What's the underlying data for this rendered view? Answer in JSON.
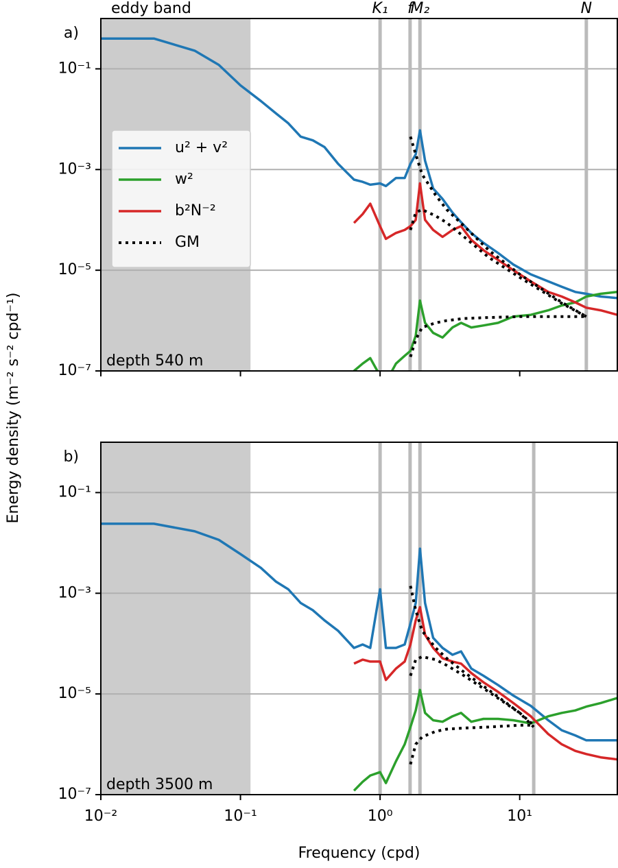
{
  "chart_data": [
    {
      "type": "line",
      "panel_label": "a)",
      "annotation": "depth 540 m",
      "ylabel": "Energy density (m⁻² s⁻² cpd⁻¹)",
      "xscale": "log",
      "yscale": "log",
      "xlim": [
        0.01,
        50
      ],
      "ylim": [
        1e-07,
        1
      ],
      "yticks": [
        {
          "value": 1e-07,
          "label": "10⁻⁷"
        },
        {
          "value": 1e-05,
          "label": "10⁻⁵"
        },
        {
          "value": 0.001,
          "label": "10⁻³"
        },
        {
          "value": 0.1,
          "label": "10⁻¹"
        }
      ],
      "grid": true,
      "legend": "upper left",
      "shade": {
        "xlim": [
          0.01,
          0.118
        ],
        "label": "eddy band",
        "color": "#cccccc"
      },
      "vlines": [
        {
          "value": 1.0,
          "label": "K₁"
        },
        {
          "value": 1.64,
          "label": "f"
        },
        {
          "value": 1.93,
          "label": "M₂"
        },
        {
          "value": 30,
          "label": "N"
        }
      ],
      "x": [
        0.01,
        0.024,
        0.047,
        0.07,
        0.1,
        0.14,
        0.18,
        0.22,
        0.27,
        0.33,
        0.4,
        0.5,
        0.65,
        0.75,
        0.85,
        1.0,
        1.1,
        1.3,
        1.5,
        1.65,
        1.8,
        1.93,
        2.1,
        2.4,
        2.8,
        3.3,
        3.8,
        4.5,
        5.5,
        7,
        9,
        12,
        16,
        20,
        25,
        30,
        38,
        50
      ],
      "series": [
        {
          "name": "u² + v²",
          "color": "#1f77b4",
          "style": "solid",
          "values": [
            0.4,
            0.4,
            0.23,
            0.12,
            0.047,
            0.023,
            0.013,
            0.0083,
            0.0045,
            0.0038,
            0.0028,
            0.0013,
            0.00063,
            0.00057,
            0.0005,
            0.00053,
            0.00047,
            0.00068,
            0.00068,
            0.0013,
            0.002,
            0.006,
            0.0015,
            0.00042,
            0.00026,
            0.00014,
            9e-05,
            5.5e-05,
            3.5e-05,
            2.2e-05,
            1.3e-05,
            8.3e-06,
            6e-06,
            4.7e-06,
            3.7e-06,
            3.4e-06,
            3e-06,
            2.8e-06
          ]
        },
        {
          "name": "w²",
          "color": "#2ca02c",
          "style": "solid",
          "values": [
            null,
            null,
            null,
            null,
            null,
            null,
            null,
            null,
            null,
            null,
            null,
            null,
            1e-07,
            1.4e-07,
            1.8e-07,
            8e-08,
            6e-08,
            1.4e-07,
            2e-07,
            2.5e-07,
            5e-07,
            2.5e-06,
            9e-07,
            5.7e-07,
            4.6e-07,
            7.3e-07,
            9e-07,
            7.3e-07,
            8e-07,
            9e-07,
            1.2e-06,
            1.3e-06,
            1.6e-06,
            2e-06,
            2.3e-06,
            3e-06,
            3.4e-06,
            3.7e-06
          ]
        },
        {
          "name": "b²N⁻²",
          "color": "#d62728",
          "style": "solid",
          "values": [
            null,
            null,
            null,
            null,
            null,
            null,
            null,
            null,
            null,
            null,
            null,
            null,
            8.7e-05,
            0.00013,
            0.00021,
            7.5e-05,
            4.2e-05,
            5.5e-05,
            6.3e-05,
            7.5e-05,
            0.0001,
            0.00053,
            0.0001,
            6.3e-05,
            4.6e-05,
            6.3e-05,
            7.5e-05,
            4e-05,
            2.5e-05,
            1.6e-05,
            1e-05,
            6e-06,
            3.7e-06,
            3e-06,
            2.3e-06,
            1.8e-06,
            1.6e-06,
            1.3e-06
          ]
        },
        {
          "name": "GM",
          "color": "#000000",
          "style": "dotted",
          "x": [
            1.65,
            1.8,
            2,
            2.5,
            3,
            4,
            6,
            10,
            20,
            30,
            null,
            1.65,
            1.8,
            2,
            2.5,
            3,
            4,
            6,
            10,
            20,
            30,
            null,
            1.65,
            1.8,
            2,
            2.5,
            3,
            4,
            6,
            10,
            20,
            30
          ],
          "values": [
            0.0045,
            0.002,
            0.0008,
            0.00031,
            0.00016,
            7.5e-05,
            2.5e-05,
            8.3e-06,
            2.3e-06,
            1.2e-06,
            null,
            6.3e-05,
            0.00014,
            0.00016,
            0.00012,
            8.8e-05,
            4.6e-05,
            1.8e-05,
            7.2e-06,
            2.2e-06,
            1.2e-06,
            null,
            1.9e-07,
            4.2e-07,
            7.3e-07,
            9e-07,
            1e-06,
            1.1e-06,
            1.15e-06,
            1.2e-06,
            1.2e-06,
            1.2e-06
          ]
        }
      ]
    },
    {
      "type": "line",
      "panel_label": "b)",
      "annotation": "depth 3500 m",
      "xlabel": "Frequency (cpd)",
      "xscale": "log",
      "yscale": "log",
      "xlim": [
        0.01,
        50
      ],
      "ylim": [
        1e-07,
        1
      ],
      "xticks": [
        {
          "value": 0.01,
          "label": "10⁻²"
        },
        {
          "value": 0.1,
          "label": "10⁻¹"
        },
        {
          "value": 1,
          "label": "10⁰"
        },
        {
          "value": 10,
          "label": "10¹"
        }
      ],
      "yticks": [
        {
          "value": 1e-07,
          "label": "10⁻⁷"
        },
        {
          "value": 1e-05,
          "label": "10⁻⁵"
        },
        {
          "value": 0.001,
          "label": "10⁻³"
        },
        {
          "value": 0.1,
          "label": "10⁻¹"
        }
      ],
      "grid": true,
      "shade": {
        "xlim": [
          0.01,
          0.118
        ],
        "color": "#cccccc"
      },
      "vlines": [
        1.0,
        1.64,
        1.93,
        12.6
      ],
      "x": [
        0.01,
        0.024,
        0.047,
        0.07,
        0.1,
        0.14,
        0.18,
        0.22,
        0.27,
        0.33,
        0.4,
        0.5,
        0.65,
        0.75,
        0.85,
        1.0,
        1.1,
        1.3,
        1.5,
        1.65,
        1.8,
        1.93,
        2.1,
        2.4,
        2.8,
        3.3,
        3.8,
        4.5,
        5.5,
        7,
        9,
        12,
        16,
        20,
        25,
        30,
        38,
        50
      ],
      "series": [
        {
          "color": "#1f77b4",
          "style": "solid",
          "values": [
            0.024,
            0.024,
            0.017,
            0.0115,
            0.006,
            0.0032,
            0.0017,
            0.0012,
            0.00064,
            0.00046,
            0.00029,
            0.00018,
            8.2e-05,
            9.6e-05,
            8.2e-05,
            0.0012,
            8.2e-05,
            8.2e-05,
            9.6e-05,
            0.00025,
            0.00064,
            0.0077,
            0.00064,
            0.00013,
            8.2e-05,
            6e-05,
            7e-05,
            3.2e-05,
            2.3e-05,
            1.5e-05,
            9.3e-06,
            5.8e-06,
            3e-06,
            1.9e-06,
            1.5e-06,
            1.2e-06,
            1.2e-06,
            1.2e-06
          ]
        },
        {
          "color": "#2ca02c",
          "style": "solid",
          "values": [
            null,
            null,
            null,
            null,
            null,
            null,
            null,
            null,
            null,
            null,
            null,
            null,
            1.2e-07,
            1.8e-07,
            2.4e-07,
            2.8e-07,
            1.7e-07,
            4.6e-07,
            1e-06,
            2.2e-06,
            4.7e-06,
            1.2e-05,
            4.2e-06,
            3e-06,
            2.8e-06,
            3.6e-06,
            4.2e-06,
            2.8e-06,
            3.2e-06,
            3.2e-06,
            3e-06,
            2.6e-06,
            3.6e-06,
            4.2e-06,
            4.7e-06,
            5.6e-06,
            6.6e-06,
            8.3e-06
          ]
        },
        {
          "color": "#d62728",
          "style": "solid",
          "values": [
            null,
            null,
            null,
            null,
            null,
            null,
            null,
            null,
            null,
            null,
            null,
            null,
            4e-05,
            4.8e-05,
            4.4e-05,
            4.4e-05,
            1.9e-05,
            3.2e-05,
            4.4e-05,
            9.6e-05,
            0.00029,
            0.00053,
            0.00015,
            8.2e-05,
            5.1e-05,
            4.4e-05,
            4e-05,
            2.6e-05,
            1.7e-05,
            1.1e-05,
            6.6e-06,
            3.6e-06,
            1.6e-06,
            1e-06,
            7.4e-07,
            6.4e-07,
            5.5e-07,
            5e-07
          ]
        },
        {
          "color": "#000000",
          "style": "dotted",
          "x": [
            1.65,
            1.8,
            2,
            2.5,
            3,
            4,
            6,
            10,
            12.6,
            null,
            1.65,
            1.8,
            2,
            2.5,
            3,
            4,
            6,
            10,
            12.6,
            null,
            1.65,
            1.8,
            2,
            2.5,
            3,
            4,
            6,
            10,
            12.6
          ],
          "values": [
            0.0014,
            0.00046,
            0.00018,
            8.2e-05,
            5.1e-05,
            2.7e-05,
            1.2e-05,
            4.2e-06,
            2.2e-06,
            null,
            2.3e-05,
            4.8e-05,
            5.5e-05,
            4.8e-05,
            3.7e-05,
            2.3e-05,
            1.1e-05,
            4.2e-06,
            2.4e-06,
            null,
            4e-07,
            1e-06,
            1.4e-06,
            1.8e-06,
            2e-06,
            2.1e-06,
            2.2e-06,
            2.4e-06,
            2.4e-06
          ]
        }
      ]
    }
  ]
}
